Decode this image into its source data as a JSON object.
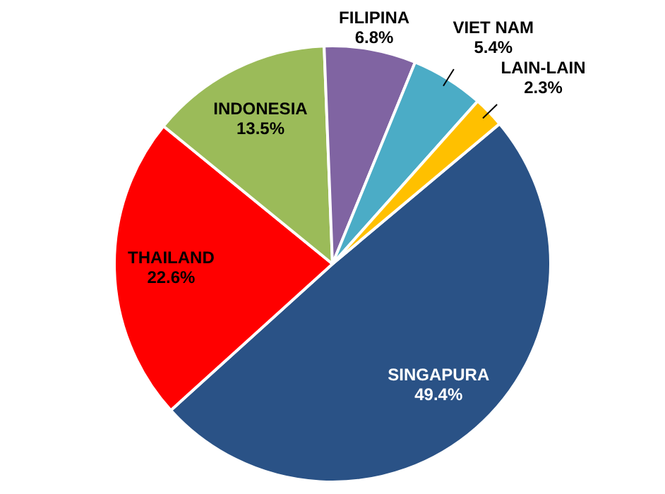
{
  "chart_data": {
    "type": "pie",
    "categories": [
      "SINGAPURA",
      "THAILAND",
      "INDONESIA",
      "FILIPINA",
      "VIET NAM",
      "LAIN-LAIN"
    ],
    "values": [
      49.4,
      22.6,
      13.5,
      6.8,
      5.4,
      2.3
    ],
    "colors": [
      "#2a5286",
      "#ff0000",
      "#9bbb59",
      "#8064a2",
      "#4bacc6",
      "#ffc000"
    ],
    "value_labels": [
      "49.4%",
      "22.6%",
      "13.5%",
      "6.8%",
      "5.4%",
      "2.3%"
    ]
  }
}
